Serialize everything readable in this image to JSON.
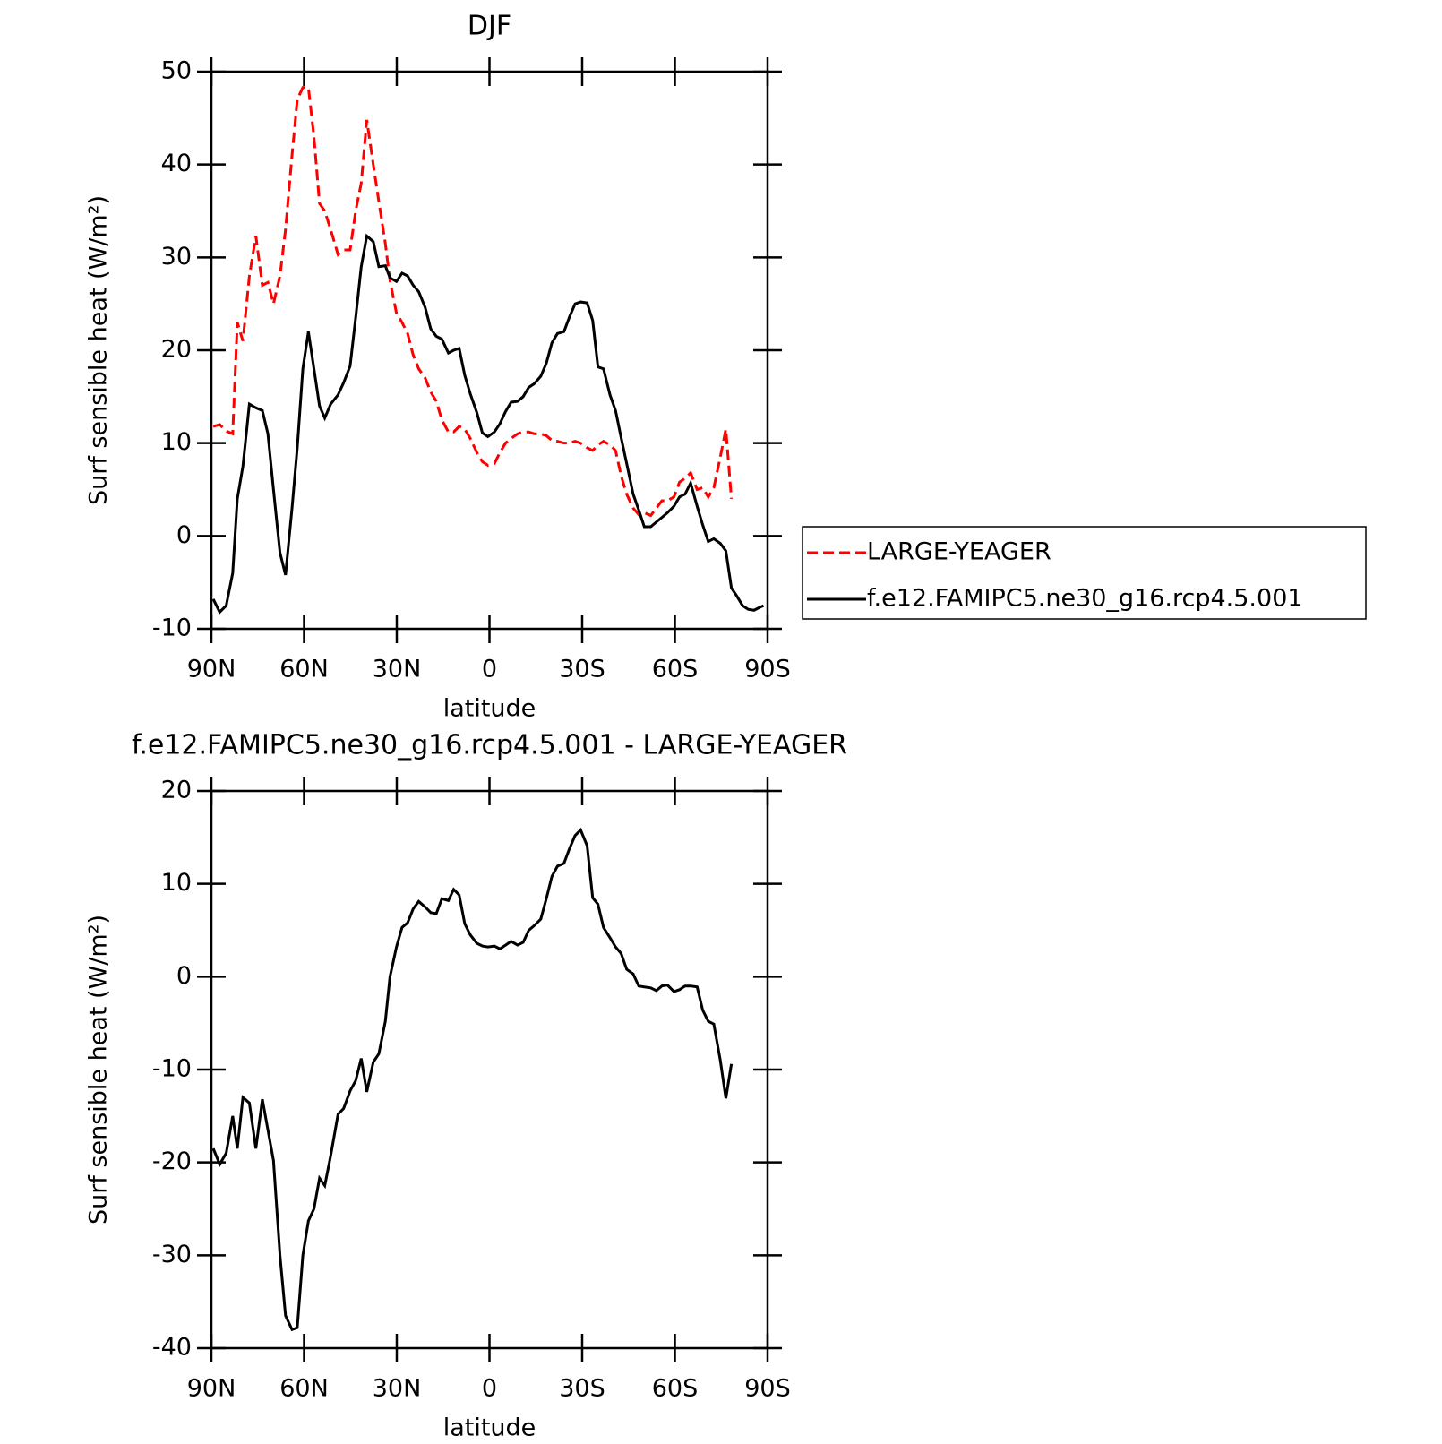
{
  "chart_data": [
    {
      "type": "line",
      "title": "DJF",
      "xlabel": "latitude",
      "ylabel": "Surf sensible heat (W/m²)",
      "xlim": [
        90,
        -90
      ],
      "xticks": [
        {
          "value": 90,
          "label": "90N"
        },
        {
          "value": 60,
          "label": "60N"
        },
        {
          "value": 30,
          "label": "30N"
        },
        0,
        {
          "value": -30,
          "label": "30S"
        },
        {
          "value": -60,
          "label": "60S"
        },
        {
          "value": -90,
          "label": "90S"
        }
      ],
      "ylim": [
        -10,
        50
      ],
      "yticks": [
        -10,
        0,
        10,
        20,
        30,
        40,
        50
      ],
      "grid": false,
      "legend": "right",
      "x": [
        89.4,
        87.3,
        85.2,
        83.1,
        81.6,
        79.8,
        77.7,
        75.6,
        73.5,
        71.7,
        69.9,
        67.8,
        66,
        63.9,
        62.2,
        60.4,
        58.6,
        56.8,
        55,
        53.3,
        51.4,
        49,
        47.2,
        45.1,
        43.3,
        41.5,
        39.7,
        37.6,
        35.8,
        33.7,
        32.2,
        30.1,
        28.3,
        26.5,
        24.7,
        22.9,
        20.8,
        19,
        17.2,
        15.4,
        13.3,
        11.6,
        9.8,
        8,
        6.2,
        4.1,
        2.3,
        0.5,
        -1.6,
        -3.4,
        -5.2,
        -7,
        -9.1,
        -10.9,
        -12.7,
        -14.5,
        -16.6,
        -18.4,
        -20.2,
        -22,
        -24.1,
        -25.9,
        -27.7,
        -29.5,
        -31.6,
        -33.4,
        -35.1,
        -36.9,
        -39,
        -40.8,
        -42.6,
        -44.4,
        -46.5,
        -48.3,
        -50.1,
        -52.2,
        -54,
        -55.8,
        -57.6,
        -59.7,
        -61.5,
        -63.3,
        -65.1,
        -67.2,
        -69,
        -70.8,
        -72.6,
        -74.7,
        -76.5,
        -78.3,
        -80.1,
        -81.9,
        -83.7,
        -85.6,
        -87.4,
        -88.7
      ],
      "series": [
        {
          "name": "LARGE-YEAGER",
          "color": "#ff0000",
          "style": "dashed",
          "values": [
            11.8,
            12,
            11.3,
            11,
            23,
            21,
            28,
            32.3,
            27,
            27.3,
            25,
            28,
            33,
            41,
            47,
            48.3,
            48.3,
            43,
            35.8,
            35,
            33,
            30.3,
            30.8,
            30.8,
            35,
            38,
            44.8,
            40,
            36,
            31.5,
            27.5,
            24,
            23,
            21.8,
            19.5,
            18,
            17,
            15.5,
            14.5,
            12.5,
            11.2,
            11.2,
            11.8,
            11.5,
            10.5,
            9,
            8,
            7.6,
            7.8,
            9,
            10,
            10.5,
            11,
            11.2,
            11.2,
            11,
            11,
            10.8,
            10.3,
            10.2,
            10,
            10,
            10.2,
            10,
            9.5,
            9.2,
            9.8,
            10.2,
            9.8,
            9.2,
            6.5,
            4.5,
            3,
            2.3,
            2.5,
            2.2,
            3,
            3.8,
            3.8,
            4.2,
            5.8,
            6.2,
            6.8,
            5,
            5.2,
            4.2,
            5.2,
            8.5,
            11.5,
            4,
            null,
            null,
            null,
            null,
            null,
            null
          ]
        },
        {
          "name": "f.e12.FAMIPC5.ne30_g16.rcp4.5.001",
          "color": "#000000",
          "style": "solid",
          "values": [
            -6.8,
            -8.2,
            -7.5,
            -4,
            4,
            7.5,
            14.2,
            13.8,
            13.5,
            11,
            5,
            -1.8,
            -4.2,
            3,
            9.5,
            18,
            22,
            18,
            14,
            12.7,
            14.2,
            15.2,
            16.5,
            18.3,
            23.5,
            29,
            32.3,
            31.7,
            29,
            29.1,
            27.8,
            27.4,
            28.3,
            28,
            27,
            26.3,
            24.6,
            22.3,
            21.5,
            21.2,
            19.7,
            20,
            20.2,
            17.3,
            15.3,
            13.3,
            11.1,
            10.7,
            11.2,
            12.1,
            13.4,
            14.4,
            14.5,
            15,
            16,
            16.4,
            17.2,
            18.6,
            20.8,
            21.8,
            22,
            23.6,
            25,
            25.2,
            25.1,
            23.2,
            18.2,
            18,
            15.2,
            13.5,
            10.6,
            7.8,
            4.5,
            2.8,
            1,
            1,
            1.5,
            2,
            2.5,
            3.2,
            4.2,
            4.5,
            5.7,
            3.2,
            1.2,
            -0.6,
            -0.3,
            -0.8,
            -1.6,
            -5.6,
            -6.5,
            -7.5,
            -7.9,
            -8,
            -7.7,
            -7.5
          ]
        }
      ]
    },
    {
      "type": "line",
      "title": "f.e12.FAMIPC5.ne30_g16.rcp4.5.001 - LARGE-YEAGER",
      "xlabel": "latitude",
      "ylabel": "Surf sensible heat (W/m²)",
      "xlim": [
        90,
        -90
      ],
      "xticks": [
        {
          "value": 90,
          "label": "90N"
        },
        {
          "value": 60,
          "label": "60N"
        },
        {
          "value": 30,
          "label": "30N"
        },
        0,
        {
          "value": -30,
          "label": "30S"
        },
        {
          "value": -60,
          "label": "60S"
        },
        {
          "value": -90,
          "label": "90S"
        }
      ],
      "ylim": [
        -40,
        20
      ],
      "yticks": [
        -40,
        -30,
        -20,
        -10,
        0,
        10,
        20
      ],
      "grid": false,
      "x": [
        89.4,
        87.3,
        85.2,
        83.1,
        81.6,
        79.8,
        77.7,
        75.6,
        73.5,
        71.7,
        69.9,
        67.8,
        66,
        63.9,
        62.2,
        60.4,
        58.6,
        56.8,
        55,
        53.3,
        51.4,
        49,
        47.2,
        45.1,
        43.3,
        41.5,
        39.7,
        37.6,
        35.8,
        33.7,
        32.2,
        30.1,
        28.3,
        26.5,
        24.7,
        22.9,
        20.8,
        19,
        17.2,
        15.4,
        13.3,
        11.6,
        9.8,
        8,
        6.2,
        4.1,
        2.3,
        0.5,
        -1.6,
        -3.4,
        -5.2,
        -7,
        -9.1,
        -10.9,
        -12.7,
        -14.5,
        -16.6,
        -18.4,
        -20.2,
        -22,
        -24.1,
        -25.9,
        -27.7,
        -29.5,
        -31.6,
        -33.4,
        -35.1,
        -36.9,
        -39,
        -40.8,
        -42.6,
        -44.4,
        -46.5,
        -48.3,
        -50.1,
        -52.2,
        -54,
        -55.8,
        -57.6,
        -59.7,
        -61.5,
        -63.3,
        -65.1,
        -67.2,
        -69,
        -70.8,
        -72.6,
        -74.7,
        -76.5,
        -78.3
      ],
      "color": "#000000",
      "values": [
        -18.5,
        -20.2,
        -19,
        -15,
        -18.5,
        -13,
        -13.6,
        -18.5,
        -13.2,
        -16.5,
        -19.8,
        -30,
        -36.5,
        -38,
        -37.8,
        -30,
        -26.3,
        -25,
        -21.7,
        -22.5,
        -19.3,
        -14.8,
        -14.2,
        -12.3,
        -11.2,
        -8.8,
        -12.4,
        -9.2,
        -8.3,
        -4.8,
        0,
        3.2,
        5.3,
        5.8,
        7.3,
        8.1,
        7.5,
        6.9,
        6.8,
        8.4,
        8.2,
        9.4,
        8.8,
        5.7,
        4.5,
        3.6,
        3.3,
        3.2,
        3.3,
        3,
        3.4,
        3.8,
        3.4,
        3.7,
        5,
        5.5,
        6.2,
        8.4,
        10.8,
        11.9,
        12.2,
        13.8,
        15.2,
        15.8,
        14.1,
        8.5,
        7.8,
        5.3,
        4.2,
        3.2,
        2.5,
        0.8,
        0.3,
        -1,
        -1.1,
        -1.2,
        -1.5,
        -1,
        -0.9,
        -1.6,
        -1.4,
        -1,
        -1,
        -1.1,
        -3.6,
        -4.8,
        -5.1,
        -9,
        -13.1,
        -9.4
      ]
    }
  ]
}
